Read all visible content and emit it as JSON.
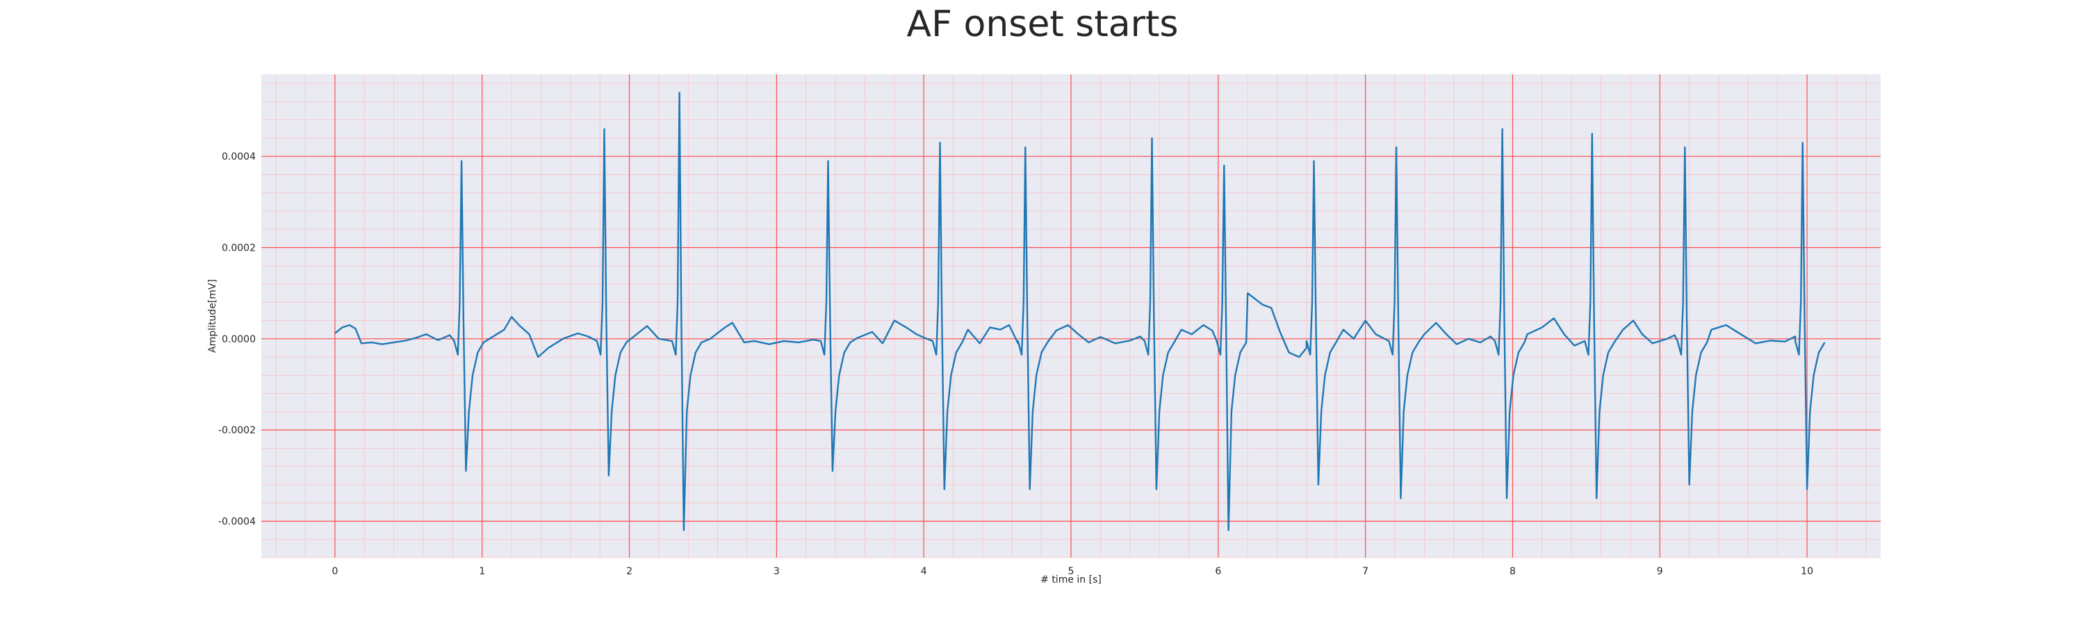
{
  "chart_data": {
    "type": "line",
    "title": "AF onset starts",
    "xlabel": "# time in [s]",
    "ylabel": "Amplitude[mV]",
    "xlim": [
      -0.5,
      10.5
    ],
    "ylim": [
      -0.00048,
      0.00058
    ],
    "x_ticks": [
      0,
      1,
      2,
      3,
      4,
      5,
      6,
      7,
      8,
      9,
      10
    ],
    "x_tick_labels": [
      "0",
      "1",
      "2",
      "3",
      "4",
      "5",
      "6",
      "7",
      "8",
      "9",
      "10"
    ],
    "y_ticks": [
      -0.0004,
      -0.0002,
      0.0,
      0.0002,
      0.0004
    ],
    "y_tick_labels": [
      "-0.0004",
      "-0.0002",
      "0.0000",
      "0.0002",
      "0.0004"
    ],
    "grid": true,
    "colors": {
      "background": "#eaeaf2",
      "major_grid": "#ff4d4d",
      "minor_grid": "#ffb3b3",
      "line": "#1f77b4"
    },
    "series": [
      {
        "beats": [
          {
            "t": 0.86,
            "peak": 0.00039,
            "trough": -0.00029
          },
          {
            "t": 1.83,
            "peak": 0.00046,
            "trough": -0.0003
          },
          {
            "t": 2.34,
            "peak": 0.00054,
            "trough": -0.00042
          },
          {
            "t": 3.35,
            "peak": 0.00039,
            "trough": -0.00029
          },
          {
            "t": 4.11,
            "peak": 0.00043,
            "trough": -0.00033
          },
          {
            "t": 4.69,
            "peak": 0.00042,
            "trough": -0.00033
          },
          {
            "t": 5.55,
            "peak": 0.00044,
            "trough": -0.00033
          },
          {
            "t": 6.04,
            "peak": 0.00038,
            "trough": -0.00042
          },
          {
            "t": 6.65,
            "peak": 0.00039,
            "trough": -0.00032
          },
          {
            "t": 7.21,
            "peak": 0.00042,
            "trough": -0.00035
          },
          {
            "t": 7.93,
            "peak": 0.00046,
            "trough": -0.00035
          },
          {
            "t": 8.54,
            "peak": 0.00045,
            "trough": -0.00035
          },
          {
            "t": 9.17,
            "peak": 0.00042,
            "trough": -0.00032
          },
          {
            "t": 9.97,
            "peak": 0.00043,
            "trough": -0.00033
          }
        ],
        "baseline": [
          [
            0.0,
            1.2e-05
          ],
          [
            0.05,
            2.5e-05
          ],
          [
            0.1,
            3e-05
          ],
          [
            0.14,
            2.2e-05
          ],
          [
            0.18,
            -1e-05
          ],
          [
            0.25,
            -8e-06
          ],
          [
            0.32,
            -1.2e-05
          ],
          [
            0.4,
            -8e-06
          ],
          [
            0.48,
            -4e-06
          ],
          [
            0.55,
            2e-06
          ],
          [
            0.62,
            1e-05
          ],
          [
            0.7,
            -3e-06
          ],
          [
            0.78,
            8e-06
          ],
          [
            1.05,
            0.0
          ],
          [
            1.15,
            2e-05
          ],
          [
            1.2,
            4.8e-05
          ],
          [
            1.25,
            3e-05
          ],
          [
            1.32,
            1e-05
          ],
          [
            1.38,
            -4e-05
          ],
          [
            1.45,
            -2e-05
          ],
          [
            1.55,
            0.0
          ],
          [
            1.65,
            1.2e-05
          ],
          [
            1.72,
            5e-06
          ],
          [
            2.05,
            1e-05
          ],
          [
            2.12,
            2.8e-05
          ],
          [
            2.2,
            0.0
          ],
          [
            2.55,
            0.0
          ],
          [
            2.65,
            2.5e-05
          ],
          [
            2.7,
            3.5e-05
          ],
          [
            2.78,
            -8e-06
          ],
          [
            2.85,
            -5e-06
          ],
          [
            2.95,
            -1.2e-05
          ],
          [
            3.05,
            -5e-06
          ],
          [
            3.15,
            -8e-06
          ],
          [
            3.25,
            -2e-06
          ],
          [
            3.55,
            2e-06
          ],
          [
            3.65,
            1.5e-05
          ],
          [
            3.72,
            -1e-05
          ],
          [
            3.8,
            4e-05
          ],
          [
            3.88,
            2.5e-05
          ],
          [
            3.95,
            1e-05
          ],
          [
            4.02,
            0.0
          ],
          [
            4.3,
            2e-05
          ],
          [
            4.38,
            -1e-05
          ],
          [
            4.45,
            2.5e-05
          ],
          [
            4.52,
            2e-05
          ],
          [
            4.58,
            3e-05
          ],
          [
            4.64,
            -1e-05
          ],
          [
            4.9,
            1.8e-05
          ],
          [
            4.98,
            3e-05
          ],
          [
            5.05,
            1e-05
          ],
          [
            5.12,
            -8e-06
          ],
          [
            5.2,
            4e-06
          ],
          [
            5.3,
            -1e-05
          ],
          [
            5.4,
            -4e-06
          ],
          [
            5.47,
            5e-06
          ],
          [
            5.75,
            2e-05
          ],
          [
            5.82,
            1e-05
          ],
          [
            5.9,
            3e-05
          ],
          [
            5.96,
            1.8e-05
          ],
          [
            6.13,
            0.00012
          ],
          [
            6.2,
            0.0001
          ],
          [
            6.3,
            7.5e-05
          ],
          [
            6.36,
            6.8e-05
          ],
          [
            6.42,
            1.5e-05
          ],
          [
            6.48,
            -3e-05
          ],
          [
            6.55,
            -4e-05
          ],
          [
            6.6,
            -2e-05
          ],
          [
            6.85,
            2e-05
          ],
          [
            6.92,
            0.0
          ],
          [
            7.0,
            4e-05
          ],
          [
            7.07,
            1e-05
          ],
          [
            7.13,
            0.0
          ],
          [
            7.4,
            1e-05
          ],
          [
            7.48,
            3.5e-05
          ],
          [
            7.55,
            1e-05
          ],
          [
            7.62,
            -1.2e-05
          ],
          [
            7.7,
            0.0
          ],
          [
            7.78,
            -8e-06
          ],
          [
            7.85,
            5e-06
          ],
          [
            8.1,
            1e-05
          ],
          [
            8.2,
            2.5e-05
          ],
          [
            8.28,
            4.5e-05
          ],
          [
            8.35,
            1e-05
          ],
          [
            8.42,
            -1.5e-05
          ],
          [
            8.48,
            0.0
          ],
          [
            8.75,
            2e-05
          ],
          [
            8.82,
            4e-05
          ],
          [
            8.88,
            1e-05
          ],
          [
            8.95,
            -1e-05
          ],
          [
            9.05,
            0.0
          ],
          [
            9.1,
            8e-06
          ],
          [
            9.35,
            2e-05
          ],
          [
            9.45,
            3e-05
          ],
          [
            9.55,
            1e-05
          ],
          [
            9.65,
            -1e-05
          ],
          [
            9.75,
            -4e-06
          ],
          [
            9.85,
            -6e-06
          ],
          [
            9.92,
            5e-06
          ]
        ]
      }
    ]
  }
}
